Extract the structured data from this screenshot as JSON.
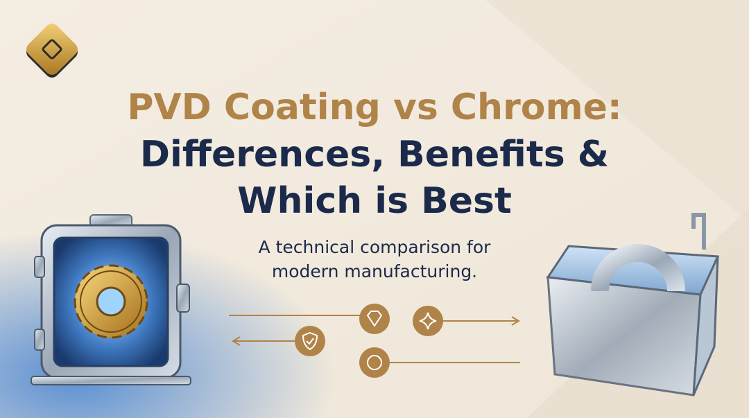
{
  "header": {
    "title_lines": [
      "PVD Coating vs Chrome:",
      "Differences, Benefits &",
      "Which is Best"
    ],
    "subtitle_lines": [
      "A technical comparison for",
      "modern manufacturing."
    ]
  }
}
